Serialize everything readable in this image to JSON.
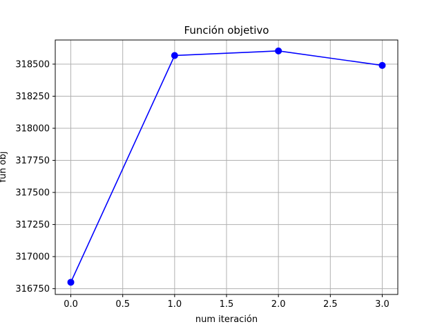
{
  "chart_data": {
    "type": "line",
    "title": "Función objetivo",
    "xlabel": "num iteración",
    "ylabel": "fun obj",
    "x": [
      0.0,
      1.0,
      2.0,
      3.0
    ],
    "series": [
      {
        "values": [
          316800,
          318567,
          318603,
          318490
        ],
        "color": "#0000ff",
        "marker": "circle"
      }
    ],
    "xlim": [
      -0.15,
      3.15
    ],
    "ylim": [
      316705,
      318688
    ],
    "xticks": [
      0.0,
      0.5,
      1.0,
      1.5,
      2.0,
      2.5,
      3.0
    ],
    "xtick_labels": [
      "0.0",
      "0.5",
      "1.0",
      "1.5",
      "2.0",
      "2.5",
      "3.0"
    ],
    "yticks": [
      316750,
      317000,
      317250,
      317500,
      317750,
      318000,
      318250,
      318500
    ],
    "ytick_labels": [
      "316750",
      "317000",
      "317250",
      "317500",
      "317750",
      "318000",
      "318250",
      "318500"
    ],
    "grid": true,
    "grid_color": "#b0b0b0",
    "axis_color": "#000000"
  }
}
